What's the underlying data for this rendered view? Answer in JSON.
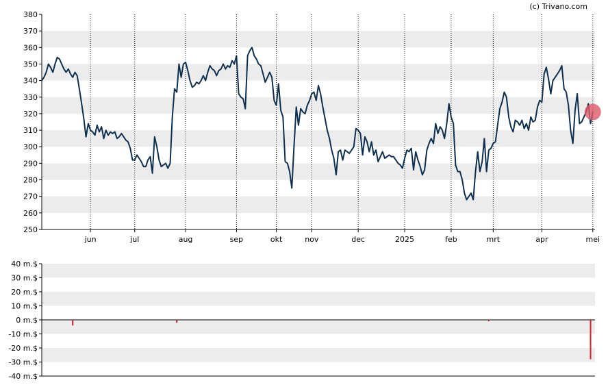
{
  "credit": "(c) Trivano.com",
  "chart_data": [
    {
      "type": "line",
      "title": "",
      "xlabel": "",
      "ylabel": "",
      "ylim": [
        250,
        380
      ],
      "yticks": [
        250,
        260,
        270,
        280,
        290,
        300,
        310,
        320,
        330,
        340,
        350,
        360,
        370,
        380
      ],
      "ytick_labels": [
        "250",
        "260",
        "270",
        "280",
        "290",
        "300",
        "310",
        "320",
        "330",
        "340",
        "350",
        "360",
        "370",
        "380"
      ],
      "x_range": [
        0,
        250
      ],
      "xticks": [
        {
          "label": "jun",
          "x": 22
        },
        {
          "label": "jul",
          "x": 42
        },
        {
          "label": "aug",
          "x": 65
        },
        {
          "label": "sep",
          "x": 88
        },
        {
          "label": "okt",
          "x": 106
        },
        {
          "label": "nov",
          "x": 122
        },
        {
          "label": "dec",
          "x": 143
        },
        {
          "label": "2025",
          "x": 164
        },
        {
          "label": "feb",
          "x": 185
        },
        {
          "label": "mrt",
          "x": 204
        },
        {
          "label": "apr",
          "x": 226
        },
        {
          "label": "mei",
          "x": 249
        }
      ],
      "grid": "alternating horizontal bands, dotted vertical lines at month ticks",
      "line_color": "#0d3050",
      "marker": {
        "x": 249,
        "y": 321,
        "color": "#e05a6a"
      },
      "series": [
        {
          "name": "",
          "points": [
            [
              0,
              340
            ],
            [
              1,
              342
            ],
            [
              2,
              345
            ],
            [
              3,
              350
            ],
            [
              4,
              348
            ],
            [
              5,
              345
            ],
            [
              6,
              350
            ],
            [
              7,
              354
            ],
            [
              8,
              353
            ],
            [
              9,
              350
            ],
            [
              10,
              347
            ],
            [
              11,
              345
            ],
            [
              12,
              347
            ],
            [
              13,
              344
            ],
            [
              14,
              342
            ],
            [
              15,
              345
            ],
            [
              16,
              343
            ],
            [
              17,
              335
            ],
            [
              18,
              326
            ],
            [
              19,
              317
            ],
            [
              20,
              306
            ],
            [
              21,
              314
            ],
            [
              22,
              310
            ],
            [
              23,
              309
            ],
            [
              24,
              307
            ],
            [
              25,
              313
            ],
            [
              26,
              309
            ],
            [
              27,
              312
            ],
            [
              28,
              305
            ],
            [
              29,
              310
            ],
            [
              30,
              307
            ],
            [
              31,
              309
            ],
            [
              32,
              308
            ],
            [
              33,
              309
            ],
            [
              34,
              305
            ],
            [
              35,
              306
            ],
            [
              36,
              308
            ],
            [
              37,
              306
            ],
            [
              38,
              304
            ],
            [
              39,
              303
            ],
            [
              40,
              299
            ],
            [
              41,
              292
            ],
            [
              42,
              292
            ],
            [
              43,
              295
            ],
            [
              44,
              293
            ],
            [
              45,
              291
            ],
            [
              46,
              288
            ],
            [
              47,
              288
            ],
            [
              48,
              292
            ],
            [
              49,
              294
            ],
            [
              50,
              284
            ],
            [
              51,
              306
            ],
            [
              52,
              300
            ],
            [
              53,
              292
            ],
            [
              54,
              288
            ],
            [
              55,
              289
            ],
            [
              56,
              290
            ],
            [
              57,
              287
            ],
            [
              58,
              290
            ],
            [
              59,
              318
            ],
            [
              60,
              335
            ],
            [
              61,
              333
            ],
            [
              62,
              350
            ],
            [
              63,
              342
            ],
            [
              64,
              350
            ],
            [
              65,
              351
            ],
            [
              66,
              346
            ],
            [
              67,
              340
            ],
            [
              68,
              336
            ],
            [
              69,
              337
            ],
            [
              70,
              339
            ],
            [
              71,
              338
            ],
            [
              72,
              340
            ],
            [
              73,
              343
            ],
            [
              74,
              340
            ],
            [
              75,
              345
            ],
            [
              76,
              349
            ],
            [
              77,
              347
            ],
            [
              78,
              346
            ],
            [
              79,
              343
            ],
            [
              80,
              346
            ],
            [
              81,
              347
            ],
            [
              82,
              350
            ],
            [
              83,
              347
            ],
            [
              84,
              349
            ],
            [
              85,
              348
            ],
            [
              86,
              352
            ],
            [
              87,
              350
            ],
            [
              88,
              355
            ],
            [
              89,
              332
            ],
            [
              90,
              330
            ],
            [
              91,
              329
            ],
            [
              92,
              323
            ],
            [
              93,
              355
            ],
            [
              94,
              358
            ],
            [
              95,
              360
            ],
            [
              96,
              355
            ],
            [
              97,
              353
            ],
            [
              98,
              350
            ],
            [
              99,
              349
            ],
            [
              100,
              344
            ],
            [
              101,
              339
            ],
            [
              102,
              342
            ],
            [
              103,
              345
            ],
            [
              104,
              342
            ],
            [
              105,
              328
            ],
            [
              106,
              325
            ],
            [
              107,
              338
            ],
            [
              108,
              322
            ],
            [
              109,
              318
            ],
            [
              110,
              291
            ],
            [
              111,
              290
            ],
            [
              112,
              285
            ],
            [
              113,
              275
            ],
            [
              114,
              300
            ],
            [
              115,
              324
            ],
            [
              116,
              313
            ],
            [
              117,
              323
            ],
            [
              118,
              321
            ],
            [
              119,
              320
            ],
            [
              120,
              325
            ],
            [
              121,
              328
            ],
            [
              122,
              332
            ],
            [
              123,
              333
            ],
            [
              124,
              328
            ],
            [
              125,
              337
            ],
            [
              126,
              332
            ],
            [
              127,
              324
            ],
            [
              128,
              317
            ],
            [
              129,
              310
            ],
            [
              130,
              305
            ],
            [
              131,
              298
            ],
            [
              132,
              293
            ],
            [
              133,
              283
            ],
            [
              134,
              297
            ],
            [
              135,
              298
            ],
            [
              136,
              292
            ],
            [
              137,
              298
            ],
            [
              138,
              297
            ],
            [
              139,
              296
            ],
            [
              140,
              298
            ],
            [
              141,
              300
            ],
            [
              142,
              311
            ],
            [
              143,
              310
            ],
            [
              144,
              308
            ],
            [
              145,
              295
            ],
            [
              146,
              306
            ],
            [
              147,
              303
            ],
            [
              148,
              297
            ],
            [
              149,
              303
            ],
            [
              150,
              295
            ],
            [
              151,
              298
            ],
            [
              152,
              291
            ],
            [
              153,
              294
            ],
            [
              154,
              297
            ],
            [
              155,
              293
            ],
            [
              156,
              294
            ],
            [
              157,
              295
            ],
            [
              158,
              294
            ],
            [
              159,
              294
            ],
            [
              160,
              292
            ],
            [
              161,
              290
            ],
            [
              162,
              289
            ],
            [
              163,
              287
            ],
            [
              164,
              293
            ],
            [
              165,
              298
            ],
            [
              166,
              297
            ],
            [
              167,
              299
            ],
            [
              168,
              286
            ],
            [
              169,
              297
            ],
            [
              170,
              292
            ],
            [
              171,
              288
            ],
            [
              172,
              283
            ],
            [
              173,
              286
            ],
            [
              174,
              298
            ],
            [
              175,
              302
            ],
            [
              176,
              305
            ],
            [
              177,
              302
            ],
            [
              178,
              314
            ],
            [
              179,
              308
            ],
            [
              180,
              312
            ],
            [
              181,
              310
            ],
            [
              182,
              305
            ],
            [
              183,
              314
            ],
            [
              184,
              326
            ],
            [
              185,
              318
            ],
            [
              186,
              314
            ],
            [
              187,
              289
            ],
            [
              188,
              285
            ],
            [
              189,
              285
            ],
            [
              190,
              280
            ],
            [
              191,
              272
            ],
            [
              192,
              268
            ],
            [
              193,
              270
            ],
            [
              194,
              272
            ],
            [
              195,
              268
            ],
            [
              196,
              285
            ],
            [
              197,
              297
            ],
            [
              198,
              285
            ],
            [
              199,
              291
            ],
            [
              200,
              305
            ],
            [
              201,
              285
            ],
            [
              202,
              298
            ],
            [
              203,
              299
            ],
            [
              204,
              302
            ],
            [
              205,
              303
            ],
            [
              206,
              313
            ],
            [
              207,
              323
            ],
            [
              208,
              327
            ],
            [
              209,
              333
            ],
            [
              210,
              330
            ],
            [
              211,
              318
            ],
            [
              212,
              312
            ],
            [
              213,
              309
            ],
            [
              214,
              316
            ],
            [
              215,
              315
            ],
            [
              216,
              313
            ],
            [
              217,
              316
            ],
            [
              218,
              311
            ],
            [
              219,
              314
            ],
            [
              220,
              310
            ],
            [
              221,
              318
            ],
            [
              222,
              315
            ],
            [
              223,
              316
            ],
            [
              224,
              324
            ],
            [
              225,
              328
            ],
            [
              226,
              327
            ],
            [
              227,
              344
            ],
            [
              228,
              348
            ],
            [
              229,
              341
            ],
            [
              230,
              332
            ],
            [
              231,
              340
            ],
            [
              232,
              342
            ],
            [
              233,
              344
            ],
            [
              234,
              346
            ],
            [
              235,
              349
            ],
            [
              236,
              335
            ],
            [
              237,
              333
            ],
            [
              238,
              325
            ],
            [
              239,
              310
            ],
            [
              240,
              302
            ],
            [
              241,
              322
            ],
            [
              242,
              332
            ],
            [
              243,
              314
            ],
            [
              244,
              315
            ],
            [
              245,
              318
            ],
            [
              246,
              321
            ],
            [
              247,
              326
            ],
            [
              248,
              314
            ],
            [
              249,
              321
            ]
          ]
        }
      ]
    },
    {
      "type": "bar",
      "title": "",
      "xlabel": "",
      "ylabel": "",
      "ylim": [
        -40,
        40
      ],
      "yticks": [
        -40,
        -30,
        -20,
        -10,
        0,
        10,
        20,
        30,
        40
      ],
      "ytick_labels": [
        "-40 m.$",
        "-30 m.$",
        "-20 m.$",
        "-10 m.$",
        "0 m.$",
        "10 m.$",
        "20 m.$",
        "30 m.$",
        "40 m.$"
      ],
      "x_range": [
        0,
        250
      ],
      "bar_color": "#d0202e",
      "grid": "alternating horizontal bands",
      "series": [
        {
          "name": "",
          "points": [
            [
              14,
              -4
            ],
            [
              61,
              -2
            ],
            [
              202,
              -1
            ],
            [
              248,
              -28
            ]
          ]
        }
      ]
    }
  ]
}
